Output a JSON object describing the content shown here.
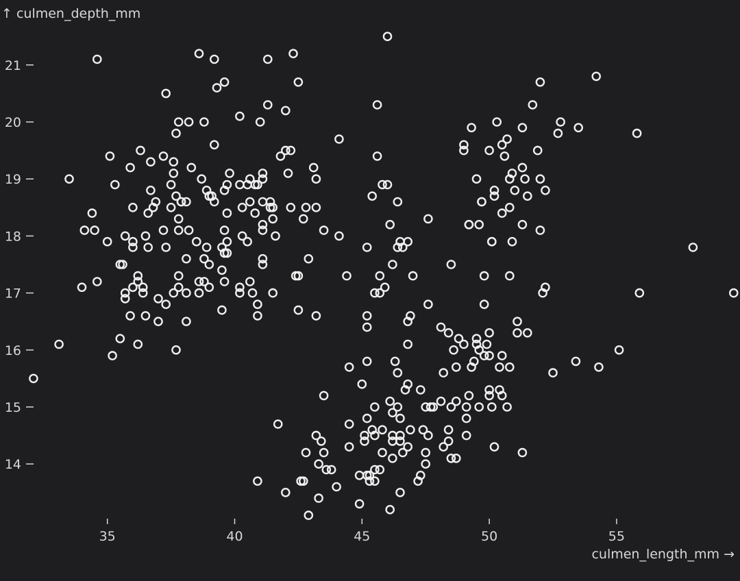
{
  "colors": {
    "background": "#1e1e20",
    "foreground": "#d8d8d8",
    "point_stroke": "#efefef"
  },
  "chart_data": {
    "type": "scatter",
    "title": "",
    "xlabel": "culmen_length_mm →",
    "ylabel": "↑ culmen_depth_mm",
    "xlim": [
      32,
      59.6
    ],
    "ylim": [
      12.9,
      21.8
    ],
    "xticks": [
      35,
      40,
      45,
      50,
      55
    ],
    "yticks": [
      14,
      15,
      16,
      17,
      18,
      19,
      20,
      21
    ],
    "grid": false,
    "marker": "hollow-circle",
    "points": [
      [
        32.1,
        15.5
      ],
      [
        33.1,
        16.1
      ],
      [
        33.5,
        19.0
      ],
      [
        34.0,
        17.1
      ],
      [
        34.1,
        18.1
      ],
      [
        34.4,
        18.4
      ],
      [
        34.5,
        18.1
      ],
      [
        34.6,
        21.1
      ],
      [
        34.6,
        17.2
      ],
      [
        35.0,
        17.9
      ],
      [
        35.1,
        19.4
      ],
      [
        35.2,
        15.9
      ],
      [
        35.3,
        18.9
      ],
      [
        35.5,
        16.2
      ],
      [
        35.5,
        17.5
      ],
      [
        35.6,
        17.5
      ],
      [
        35.7,
        16.9
      ],
      [
        35.7,
        17.0
      ],
      [
        35.7,
        18.0
      ],
      [
        35.9,
        16.6
      ],
      [
        35.9,
        19.2
      ],
      [
        36.0,
        17.1
      ],
      [
        36.0,
        18.5
      ],
      [
        36.0,
        17.8
      ],
      [
        36.0,
        17.9
      ],
      [
        36.2,
        16.1
      ],
      [
        36.2,
        17.2
      ],
      [
        36.2,
        17.3
      ],
      [
        36.3,
        19.5
      ],
      [
        36.4,
        17.0
      ],
      [
        36.4,
        17.1
      ],
      [
        36.5,
        16.6
      ],
      [
        36.5,
        18.0
      ],
      [
        36.6,
        17.8
      ],
      [
        36.6,
        18.4
      ],
      [
        36.7,
        18.8
      ],
      [
        36.7,
        19.3
      ],
      [
        36.8,
        18.5
      ],
      [
        36.9,
        18.6
      ],
      [
        37.0,
        16.9
      ],
      [
        37.0,
        16.5
      ],
      [
        37.2,
        18.1
      ],
      [
        37.2,
        19.4
      ],
      [
        37.3,
        16.8
      ],
      [
        37.3,
        17.8
      ],
      [
        37.3,
        20.5
      ],
      [
        37.5,
        18.9
      ],
      [
        37.5,
        18.5
      ],
      [
        37.6,
        17.0
      ],
      [
        37.6,
        19.1
      ],
      [
        37.6,
        19.3
      ],
      [
        37.7,
        16.0
      ],
      [
        37.7,
        18.7
      ],
      [
        37.7,
        19.8
      ],
      [
        37.8,
        17.1
      ],
      [
        37.8,
        18.1
      ],
      [
        37.8,
        17.3
      ],
      [
        37.8,
        18.3
      ],
      [
        37.8,
        20.0
      ],
      [
        37.9,
        18.6
      ],
      [
        37.9,
        18.6
      ],
      [
        38.1,
        17.0
      ],
      [
        38.1,
        18.6
      ],
      [
        38.1,
        16.5
      ],
      [
        38.1,
        17.6
      ],
      [
        38.2,
        18.1
      ],
      [
        38.2,
        20.0
      ],
      [
        38.3,
        19.2
      ],
      [
        38.5,
        17.9
      ],
      [
        38.6,
        21.2
      ],
      [
        38.6,
        17.2
      ],
      [
        38.6,
        17.0
      ],
      [
        38.7,
        19.0
      ],
      [
        38.8,
        17.2
      ],
      [
        38.8,
        17.6
      ],
      [
        38.8,
        20.0
      ],
      [
        38.9,
        17.8
      ],
      [
        38.9,
        18.8
      ],
      [
        39.0,
        17.1
      ],
      [
        39.0,
        17.5
      ],
      [
        39.0,
        18.7
      ],
      [
        39.1,
        18.7
      ],
      [
        39.2,
        19.6
      ],
      [
        39.2,
        18.6
      ],
      [
        39.2,
        21.1
      ],
      [
        39.3,
        20.6
      ],
      [
        39.5,
        16.7
      ],
      [
        39.5,
        17.4
      ],
      [
        39.5,
        17.8
      ],
      [
        39.6,
        17.2
      ],
      [
        39.6,
        17.7
      ],
      [
        39.6,
        18.8
      ],
      [
        39.6,
        18.1
      ],
      [
        39.6,
        20.7
      ],
      [
        39.7,
        17.7
      ],
      [
        39.7,
        18.9
      ],
      [
        39.7,
        17.9
      ],
      [
        39.7,
        18.4
      ],
      [
        39.8,
        19.1
      ],
      [
        40.2,
        17.0
      ],
      [
        40.2,
        17.1
      ],
      [
        40.2,
        18.9
      ],
      [
        40.2,
        20.1
      ],
      [
        40.3,
        18.0
      ],
      [
        40.3,
        18.5
      ],
      [
        40.5,
        17.9
      ],
      [
        40.5,
        18.9
      ],
      [
        40.6,
        17.2
      ],
      [
        40.6,
        18.6
      ],
      [
        40.6,
        19.0
      ],
      [
        40.7,
        17.0
      ],
      [
        40.8,
        18.4
      ],
      [
        40.8,
        18.9
      ],
      [
        40.9,
        16.6
      ],
      [
        40.9,
        16.8
      ],
      [
        40.9,
        18.9
      ],
      [
        41.0,
        20.0
      ],
      [
        41.1,
        17.5
      ],
      [
        41.1,
        17.6
      ],
      [
        41.1,
        18.1
      ],
      [
        41.1,
        18.2
      ],
      [
        41.1,
        19.0
      ],
      [
        41.1,
        18.6
      ],
      [
        41.1,
        19.1
      ],
      [
        41.3,
        20.3
      ],
      [
        41.3,
        21.1
      ],
      [
        41.4,
        18.6
      ],
      [
        41.4,
        18.5
      ],
      [
        41.5,
        17.0
      ],
      [
        41.5,
        18.3
      ],
      [
        41.5,
        18.5
      ],
      [
        41.6,
        18.0
      ],
      [
        42.0,
        19.5
      ],
      [
        42.0,
        20.2
      ],
      [
        42.1,
        19.1
      ],
      [
        42.2,
        18.5
      ],
      [
        42.2,
        19.5
      ],
      [
        42.3,
        21.2
      ],
      [
        42.5,
        16.7
      ],
      [
        42.5,
        20.7
      ],
      [
        42.7,
        18.3
      ],
      [
        42.8,
        18.5
      ],
      [
        42.9,
        17.6
      ],
      [
        43.1,
        19.2
      ],
      [
        43.2,
        16.6
      ],
      [
        43.2,
        18.5
      ],
      [
        43.2,
        19.0
      ],
      [
        43.5,
        18.1
      ],
      [
        44.1,
        18.0
      ],
      [
        44.1,
        19.7
      ],
      [
        41.8,
        19.4
      ],
      [
        42.4,
        17.3
      ],
      [
        42.5,
        17.3
      ],
      [
        40.9,
        13.7
      ],
      [
        41.7,
        14.7
      ],
      [
        42.0,
        13.5
      ],
      [
        42.6,
        13.7
      ],
      [
        42.7,
        13.7
      ],
      [
        42.8,
        14.2
      ],
      [
        42.9,
        13.1
      ],
      [
        43.2,
        14.5
      ],
      [
        43.3,
        14.0
      ],
      [
        43.3,
        13.4
      ],
      [
        43.4,
        14.4
      ],
      [
        43.5,
        14.2
      ],
      [
        43.5,
        15.2
      ],
      [
        43.6,
        13.9
      ],
      [
        43.8,
        13.9
      ],
      [
        44.0,
        13.6
      ],
      [
        44.4,
        17.3
      ],
      [
        44.5,
        14.3
      ],
      [
        44.5,
        15.7
      ],
      [
        44.5,
        14.7
      ],
      [
        44.9,
        13.3
      ],
      [
        44.9,
        13.8
      ],
      [
        45.0,
        15.4
      ],
      [
        45.1,
        14.5
      ],
      [
        45.1,
        14.4
      ],
      [
        45.2,
        13.8
      ],
      [
        45.2,
        14.8
      ],
      [
        45.2,
        16.4
      ],
      [
        45.2,
        15.8
      ],
      [
        45.2,
        16.6
      ],
      [
        45.2,
        17.8
      ],
      [
        45.3,
        13.7
      ],
      [
        45.3,
        13.8
      ],
      [
        45.4,
        14.6
      ],
      [
        45.4,
        18.7
      ],
      [
        45.5,
        13.7
      ],
      [
        45.5,
        13.9
      ],
      [
        45.5,
        14.5
      ],
      [
        45.5,
        15.0
      ],
      [
        45.5,
        17.0
      ],
      [
        45.6,
        20.3
      ],
      [
        45.6,
        19.4
      ],
      [
        45.7,
        13.9
      ],
      [
        45.7,
        17.0
      ],
      [
        45.7,
        17.3
      ],
      [
        45.8,
        14.6
      ],
      [
        45.8,
        14.2
      ],
      [
        45.8,
        18.9
      ],
      [
        45.9,
        17.1
      ],
      [
        46.0,
        18.9
      ],
      [
        46.1,
        13.2
      ],
      [
        46.1,
        15.1
      ],
      [
        46.1,
        18.2
      ],
      [
        46.2,
        14.1
      ],
      [
        46.2,
        14.4
      ],
      [
        46.2,
        14.5
      ],
      [
        46.2,
        14.9
      ],
      [
        46.2,
        17.5
      ],
      [
        46.3,
        15.8
      ],
      [
        46.4,
        15.0
      ],
      [
        46.4,
        15.6
      ],
      [
        46.4,
        17.8
      ],
      [
        46.4,
        18.6
      ],
      [
        46.5,
        13.5
      ],
      [
        46.5,
        14.5
      ],
      [
        46.5,
        14.4
      ],
      [
        46.5,
        14.8
      ],
      [
        46.5,
        17.9
      ],
      [
        46.6,
        14.2
      ],
      [
        46.6,
        17.8
      ],
      [
        46.7,
        15.3
      ],
      [
        46.8,
        14.3
      ],
      [
        46.8,
        15.4
      ],
      [
        46.8,
        16.1
      ],
      [
        46.8,
        16.5
      ],
      [
        46.8,
        17.9
      ],
      [
        46.9,
        14.6
      ],
      [
        46.9,
        16.6
      ],
      [
        47.0,
        17.3
      ],
      [
        47.2,
        13.7
      ],
      [
        47.3,
        13.8
      ],
      [
        47.3,
        15.3
      ],
      [
        47.4,
        14.6
      ],
      [
        47.5,
        14.0
      ],
      [
        47.5,
        14.2
      ],
      [
        47.5,
        15.0
      ],
      [
        47.6,
        14.5
      ],
      [
        47.6,
        16.8
      ],
      [
        47.6,
        18.3
      ],
      [
        47.7,
        15.0
      ],
      [
        47.8,
        15.0
      ],
      [
        48.1,
        15.1
      ],
      [
        48.1,
        16.4
      ],
      [
        48.2,
        14.3
      ],
      [
        48.2,
        15.6
      ],
      [
        48.4,
        14.4
      ],
      [
        48.4,
        14.6
      ],
      [
        48.4,
        16.3
      ],
      [
        48.5,
        14.1
      ],
      [
        48.5,
        15.0
      ],
      [
        48.5,
        17.5
      ],
      [
        48.6,
        16.0
      ],
      [
        48.7,
        14.1
      ],
      [
        48.7,
        15.1
      ],
      [
        48.7,
        15.7
      ],
      [
        48.8,
        16.2
      ],
      [
        49.0,
        16.1
      ],
      [
        49.1,
        14.5
      ],
      [
        49.1,
        14.8
      ],
      [
        49.1,
        15.0
      ],
      [
        49.2,
        15.2
      ],
      [
        49.2,
        18.2
      ],
      [
        49.3,
        15.7
      ],
      [
        49.4,
        15.8
      ],
      [
        49.5,
        16.1
      ],
      [
        49.5,
        16.2
      ],
      [
        49.6,
        15.0
      ],
      [
        49.6,
        16.0
      ],
      [
        49.7,
        18.6
      ],
      [
        49.8,
        15.9
      ],
      [
        49.8,
        16.8
      ],
      [
        49.8,
        17.3
      ],
      [
        49.9,
        16.1
      ],
      [
        50.0,
        15.2
      ],
      [
        50.0,
        15.3
      ],
      [
        50.0,
        15.9
      ],
      [
        50.0,
        16.3
      ],
      [
        50.1,
        15.0
      ],
      [
        50.1,
        17.9
      ],
      [
        50.2,
        14.3
      ],
      [
        50.4,
        15.3
      ],
      [
        50.4,
        15.7
      ],
      [
        50.5,
        15.2
      ],
      [
        50.5,
        15.9
      ],
      [
        50.7,
        15.0
      ],
      [
        50.8,
        15.7
      ],
      [
        50.8,
        17.3
      ],
      [
        51.1,
        16.3
      ],
      [
        51.1,
        16.5
      ],
      [
        51.3,
        14.2
      ],
      [
        51.5,
        16.3
      ],
      [
        52.1,
        17.0
      ],
      [
        52.2,
        17.1
      ],
      [
        52.5,
        15.6
      ],
      [
        53.4,
        15.8
      ],
      [
        54.3,
        15.7
      ],
      [
        55.1,
        16.0
      ],
      [
        55.9,
        17.0
      ],
      [
        59.6,
        17.0
      ],
      [
        46.0,
        21.5
      ],
      [
        49.0,
        19.5
      ],
      [
        49.0,
        19.6
      ],
      [
        49.2,
        18.2
      ],
      [
        49.3,
        19.9
      ],
      [
        49.5,
        19.0
      ],
      [
        49.6,
        18.2
      ],
      [
        49.7,
        18.6
      ],
      [
        50.0,
        19.5
      ],
      [
        50.1,
        17.9
      ],
      [
        50.2,
        18.7
      ],
      [
        50.2,
        18.8
      ],
      [
        50.3,
        20.0
      ],
      [
        50.5,
        18.4
      ],
      [
        50.5,
        19.6
      ],
      [
        50.6,
        19.4
      ],
      [
        50.7,
        19.7
      ],
      [
        50.8,
        18.5
      ],
      [
        50.8,
        19.0
      ],
      [
        50.9,
        17.9
      ],
      [
        50.9,
        19.1
      ],
      [
        51.0,
        18.8
      ],
      [
        51.3,
        18.2
      ],
      [
        51.3,
        19.2
      ],
      [
        51.3,
        19.9
      ],
      [
        51.4,
        19.0
      ],
      [
        51.5,
        18.7
      ],
      [
        51.7,
        20.3
      ],
      [
        51.9,
        19.5
      ],
      [
        52.0,
        18.1
      ],
      [
        52.0,
        19.0
      ],
      [
        52.0,
        20.7
      ],
      [
        52.2,
        18.8
      ],
      [
        52.7,
        19.8
      ],
      [
        52.8,
        20.0
      ],
      [
        53.5,
        19.9
      ],
      [
        54.2,
        20.8
      ],
      [
        55.8,
        19.8
      ],
      [
        58.0,
        17.8
      ]
    ]
  }
}
